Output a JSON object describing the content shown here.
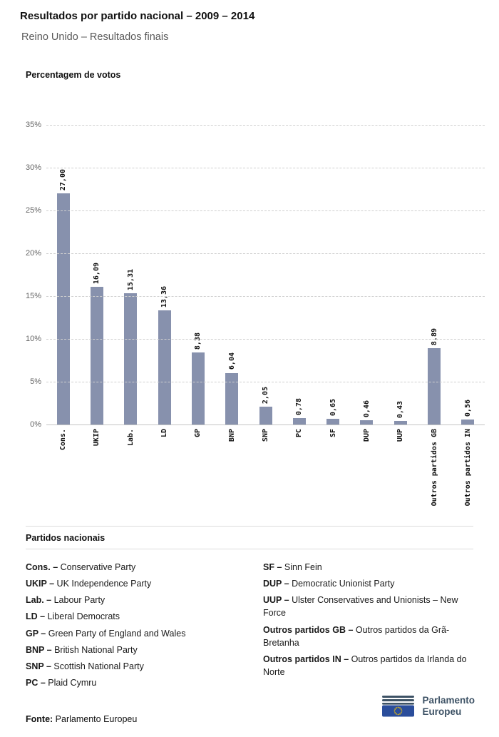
{
  "header": {
    "title": "Resultados por partido nacional – 2009 – 2014",
    "subtitle": "Reino Unido – Resultados finais"
  },
  "chart_data": {
    "type": "bar",
    "ylabel": "Percentagem de votos",
    "categories": [
      "Cons.",
      "UKIP",
      "Lab.",
      "LD",
      "GP",
      "BNP",
      "SNP",
      "PC",
      "SF",
      "DUP",
      "UUP",
      "Outros partidos GB",
      "Outros partidos IN"
    ],
    "values": [
      27.0,
      16.09,
      15.31,
      13.36,
      8.38,
      6.04,
      2.05,
      0.78,
      0.65,
      0.46,
      0.43,
      8.89,
      0.56
    ],
    "value_labels": [
      "27,00",
      "16,09",
      "15,31",
      "13,36",
      "8,38",
      "6,04",
      "2,05",
      "0,78",
      "0,65",
      "0,46",
      "0,43",
      "8,89",
      "0,56"
    ],
    "ylim": [
      0,
      35
    ],
    "ytick_values": [
      0,
      5,
      10,
      15,
      20,
      25,
      30,
      35
    ],
    "ytick_labels": [
      "0%",
      "5%",
      "10%",
      "15%",
      "20%",
      "25%",
      "30%",
      "35%"
    ],
    "grid": "horizontal-dashed",
    "legend_position": "none",
    "bar_color": "#8791ad"
  },
  "legend": {
    "heading": "Partidos nacionais",
    "columns": [
      [
        {
          "abbr": "Cons. –",
          "name": "Conservative Party"
        },
        {
          "abbr": "UKIP –",
          "name": "UK Independence Party"
        },
        {
          "abbr": "Lab. –",
          "name": "Labour Party"
        },
        {
          "abbr": "LD –",
          "name": "Liberal Democrats"
        },
        {
          "abbr": "GP –",
          "name": "Green Party of England and Wales"
        },
        {
          "abbr": "BNP –",
          "name": "British National Party"
        },
        {
          "abbr": "SNP –",
          "name": "Scottish National Party"
        },
        {
          "abbr": "PC –",
          "name": "Plaid Cymru"
        }
      ],
      [
        {
          "abbr": "SF –",
          "name": "Sinn Fein"
        },
        {
          "abbr": "DUP –",
          "name": "Democratic Unionist Party"
        },
        {
          "abbr": "UUP –",
          "name": "Ulster Conservatives and Unionists – New Force"
        },
        {
          "abbr": "Outros partidos GB –",
          "name": "Outros partidos da Grã-Bretanha"
        },
        {
          "abbr": "Outros partidos IN –",
          "name": "Outros partidos da Irlanda do Norte"
        }
      ]
    ]
  },
  "footer": {
    "source_label": "Fonte:",
    "source_value": "Parlamento Europeu",
    "logo_line1": "Parlamento",
    "logo_line2": "Europeu"
  }
}
